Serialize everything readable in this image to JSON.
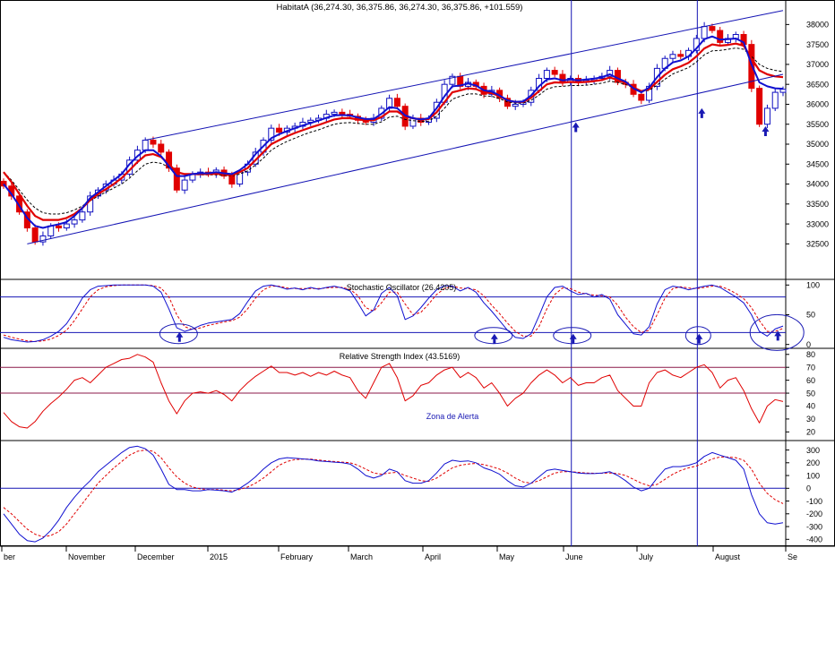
{
  "chart_data": {
    "type": "line",
    "title": "HabitatA (36,274.30, 36,375.86, 36,274.30, 36,375.86, +101.559)",
    "x_labels": [
      "ber",
      "November",
      "December",
      "2015",
      "February",
      "March",
      "April",
      "May",
      "June",
      "July",
      "August",
      "Se"
    ],
    "colors": {
      "up_candle": "#1010c0",
      "down_candle": "#e00000",
      "ma_fast": "#1010d0",
      "ma_mid": "#e00000",
      "ma_slow": "#000000",
      "channel": "#1414b4",
      "signal": "#e00000",
      "annotation": "#1a1ab4"
    },
    "price": {
      "y_ticks": [
        32500,
        33000,
        33500,
        34000,
        34500,
        35000,
        35500,
        36000,
        36500,
        37000,
        37500,
        38000
      ],
      "y_tick_labels": [
        "32500",
        "33000",
        "33500",
        "34000",
        "34500",
        "35000",
        "35500",
        "36000",
        "36500",
        "37000",
        "37500",
        "38000"
      ],
      "ylim": [
        31700,
        38300
      ],
      "close": [
        33950,
        33700,
        33300,
        32900,
        32550,
        32700,
        32950,
        32900,
        33000,
        33100,
        33300,
        33700,
        33850,
        34000,
        34100,
        34250,
        34600,
        34850,
        35100,
        35000,
        34800,
        34400,
        33850,
        34100,
        34250,
        34300,
        34250,
        34350,
        34200,
        34000,
        34300,
        34500,
        34800,
        35100,
        35400,
        35300,
        35400,
        35450,
        35550,
        35600,
        35650,
        35750,
        35800,
        35750,
        35700,
        35600,
        35550,
        35650,
        35900,
        36150,
        35950,
        35450,
        35650,
        35550,
        35650,
        36050,
        36500,
        36700,
        36450,
        36550,
        36450,
        36250,
        36350,
        36150,
        35950,
        36000,
        36050,
        36350,
        36650,
        36850,
        36750,
        36550,
        36650,
        36550,
        36600,
        36650,
        36700,
        36850,
        36550,
        36500,
        36250,
        36100,
        36450,
        36900,
        37150,
        37250,
        37200,
        37350,
        37650,
        37950,
        37850,
        37550,
        37650,
        37750,
        37500,
        36400,
        35500,
        35900,
        36300,
        36376
      ],
      "ma_fast": [
        34000,
        33750,
        33450,
        33150,
        32950,
        32900,
        32950,
        32990,
        33050,
        33200,
        33400,
        33650,
        33800,
        33950,
        34100,
        34250,
        34500,
        34700,
        34850,
        34850,
        34700,
        34450,
        34200,
        34200,
        34250,
        34270,
        34270,
        34300,
        34270,
        34250,
        34350,
        34500,
        34750,
        34950,
        35150,
        35250,
        35330,
        35400,
        35470,
        35530,
        35590,
        35660,
        35720,
        35730,
        35720,
        35670,
        35630,
        35630,
        35760,
        35930,
        35900,
        35720,
        35650,
        35620,
        35650,
        35900,
        36200,
        36450,
        36470,
        36520,
        36470,
        36350,
        36320,
        36220,
        36100,
        36060,
        36070,
        36220,
        36450,
        36620,
        36650,
        36600,
        36620,
        36600,
        36620,
        36640,
        36680,
        36750,
        36650,
        36570,
        36400,
        36300,
        36420,
        36680,
        36900,
        37050,
        37100,
        37200,
        37400,
        37630,
        37700,
        37620,
        37630,
        37650,
        37550,
        37000,
        36550,
        36450,
        36400,
        36390
      ],
      "ma_mid": [
        34300,
        34050,
        33750,
        33450,
        33200,
        33100,
        33100,
        33100,
        33150,
        33250,
        33400,
        33600,
        33750,
        33870,
        34000,
        34150,
        34350,
        34550,
        34720,
        34750,
        34680,
        34500,
        34300,
        34250,
        34250,
        34250,
        34250,
        34260,
        34250,
        34220,
        34300,
        34400,
        34600,
        34800,
        35000,
        35100,
        35200,
        35280,
        35350,
        35420,
        35480,
        35550,
        35620,
        35650,
        35650,
        35620,
        35600,
        35600,
        35680,
        35820,
        35820,
        35700,
        35650,
        35620,
        35630,
        35800,
        36050,
        36300,
        36350,
        36400,
        36380,
        36300,
        36280,
        36200,
        36100,
        36060,
        36060,
        36160,
        36330,
        36500,
        36550,
        36540,
        36560,
        36550,
        36560,
        36580,
        36610,
        36670,
        36610,
        36540,
        36420,
        36330,
        36380,
        36560,
        36740,
        36880,
        36950,
        37040,
        37200,
        37400,
        37500,
        37470,
        37490,
        37520,
        37470,
        37150,
        36850,
        36750,
        36700,
        36680
      ],
      "ma_slow": [
        34300,
        34100,
        33850,
        33600,
        33400,
        33280,
        33250,
        33250,
        33280,
        33350,
        33450,
        33580,
        33700,
        33800,
        33900,
        34000,
        34150,
        34330,
        34500,
        34550,
        34520,
        34420,
        34300,
        34250,
        34240,
        34230,
        34230,
        34230,
        34220,
        34200,
        34250,
        34330,
        34480,
        34650,
        34850,
        34970,
        35070,
        35150,
        35230,
        35300,
        35360,
        35430,
        35500,
        35530,
        35540,
        35520,
        35500,
        35500,
        35560,
        35680,
        35700,
        35620,
        35590,
        35570,
        35580,
        35700,
        35900,
        36130,
        36200,
        36260,
        36260,
        36210,
        36200,
        36140,
        36060,
        36030,
        36030,
        36100,
        36230,
        36380,
        36440,
        36450,
        36470,
        36470,
        36480,
        36500,
        36530,
        36580,
        36550,
        36500,
        36410,
        36330,
        36350,
        36480,
        36630,
        36760,
        36840,
        36920,
        37060,
        37240,
        37340,
        37350,
        37380,
        37410,
        37380,
        37200,
        37000,
        36900,
        36850,
        36820
      ],
      "channel_upper": [
        [
          35100,
          38400
        ],
        [
          35100,
          38400
        ]
      ],
      "channel_lines": [
        {
          "from": {
            "bar": 18,
            "value": 35100
          },
          "to": {
            "bar": 99,
            "value": 38350
          }
        },
        {
          "from": {
            "bar": 3,
            "value": 32500
          },
          "to": {
            "bar": 99,
            "value": 36750
          }
        }
      ],
      "signal_bars": [
        72,
        88
      ]
    },
    "stochastic": {
      "label": "Stochastic Oscillator (26.4205)",
      "y_ticks": [
        0,
        50,
        100
      ],
      "y_tick_labels": [
        "0",
        "50",
        "100"
      ],
      "levels": [
        20,
        80
      ],
      "ylim": [
        -5,
        108
      ],
      "k": [
        12,
        8,
        6,
        4,
        5,
        8,
        14,
        22,
        35,
        55,
        78,
        92,
        98,
        99,
        100,
        100,
        100,
        100,
        100,
        98,
        88,
        60,
        28,
        22,
        26,
        32,
        36,
        38,
        40,
        42,
        52,
        72,
        90,
        98,
        100,
        97,
        93,
        95,
        92,
        96,
        93,
        96,
        98,
        95,
        90,
        70,
        48,
        58,
        86,
        96,
        82,
        42,
        48,
        62,
        78,
        92,
        99,
        98,
        90,
        96,
        88,
        70,
        56,
        40,
        24,
        12,
        10,
        18,
        48,
        80,
        96,
        98,
        90,
        84,
        86,
        80,
        84,
        76,
        50,
        34,
        18,
        16,
        30,
        68,
        92,
        98,
        96,
        92,
        95,
        98,
        100,
        96,
        88,
        80,
        70,
        50,
        22,
        14,
        26,
        31
      ],
      "d": [
        16,
        12,
        9,
        6,
        5,
        6,
        9,
        15,
        24,
        40,
        60,
        80,
        92,
        97,
        99,
        100,
        100,
        100,
        100,
        99,
        95,
        80,
        50,
        30,
        25,
        28,
        32,
        35,
        38,
        40,
        46,
        60,
        78,
        92,
        98,
        98,
        95,
        94,
        94,
        94,
        94,
        95,
        96,
        96,
        93,
        82,
        62,
        56,
        70,
        88,
        88,
        68,
        50,
        54,
        68,
        84,
        94,
        98,
        95,
        94,
        92,
        82,
        66,
        52,
        36,
        22,
        14,
        14,
        30,
        60,
        84,
        95,
        94,
        88,
        85,
        83,
        82,
        80,
        66,
        46,
        30,
        20,
        24,
        50,
        78,
        94,
        97,
        95,
        94,
        96,
        98,
        98,
        93,
        86,
        77,
        62,
        40,
        22,
        22,
        27
      ]
    },
    "rsi": {
      "label": "Relative Strength Index (43.5169)",
      "y_ticks": [
        20,
        30,
        40,
        50,
        60,
        70,
        80
      ],
      "y_tick_labels": [
        "20",
        "30",
        "40",
        "50",
        "60",
        "70",
        "80"
      ],
      "levels": [
        50,
        70
      ],
      "ylim": [
        14,
        84
      ],
      "annotation": "Zona de Alerta",
      "values": [
        35,
        28,
        24,
        23,
        28,
        36,
        42,
        47,
        53,
        60,
        62,
        58,
        64,
        70,
        73,
        76,
        77,
        80,
        78,
        74,
        58,
        44,
        34,
        44,
        50,
        51,
        50,
        52,
        49,
        44,
        52,
        58,
        63,
        67,
        71,
        66,
        66,
        64,
        66,
        63,
        66,
        64,
        67,
        64,
        62,
        52,
        46,
        58,
        70,
        73,
        62,
        44,
        48,
        56,
        58,
        64,
        68,
        70,
        62,
        66,
        62,
        54,
        58,
        50,
        40,
        46,
        50,
        58,
        64,
        68,
        64,
        58,
        62,
        56,
        58,
        58,
        62,
        64,
        52,
        46,
        40,
        40,
        58,
        66,
        68,
        64,
        62,
        66,
        70,
        72,
        66,
        54,
        60,
        62,
        52,
        38,
        27,
        40,
        45,
        43.5
      ]
    },
    "macd": {
      "y_ticks": [
        -400,
        -300,
        -200,
        -100,
        0,
        100,
        200,
        300
      ],
      "y_tick_labels": [
        "-400",
        "-300",
        "-200",
        "-100",
        "0",
        "100",
        "200",
        "300"
      ],
      "levels": [
        0
      ],
      "ylim": [
        -440,
        360
      ],
      "line": [
        -200,
        -280,
        -360,
        -410,
        -420,
        -390,
        -330,
        -250,
        -150,
        -70,
        0,
        60,
        130,
        180,
        230,
        280,
        320,
        330,
        310,
        260,
        150,
        30,
        -10,
        -10,
        -20,
        -20,
        -10,
        -15,
        -20,
        -30,
        0,
        40,
        90,
        150,
        200,
        230,
        240,
        235,
        230,
        225,
        215,
        210,
        205,
        200,
        190,
        150,
        100,
        80,
        100,
        150,
        130,
        60,
        40,
        40,
        60,
        120,
        190,
        220,
        210,
        215,
        200,
        160,
        140,
        110,
        60,
        20,
        10,
        40,
        90,
        140,
        150,
        140,
        130,
        120,
        115,
        115,
        120,
        130,
        100,
        60,
        10,
        -20,
        0,
        80,
        150,
        170,
        170,
        180,
        200,
        250,
        280,
        260,
        240,
        220,
        150,
        -50,
        -200,
        -270,
        -280,
        -270
      ],
      "signal": [
        -150,
        -200,
        -260,
        -320,
        -360,
        -380,
        -370,
        -340,
        -280,
        -200,
        -120,
        -40,
        40,
        100,
        160,
        210,
        260,
        290,
        300,
        290,
        240,
        160,
        90,
        40,
        10,
        -5,
        -10,
        -10,
        -15,
        -20,
        -10,
        10,
        40,
        80,
        130,
        180,
        210,
        225,
        228,
        228,
        222,
        215,
        210,
        205,
        200,
        180,
        150,
        120,
        110,
        120,
        125,
        100,
        80,
        60,
        55,
        80,
        120,
        160,
        180,
        190,
        195,
        185,
        170,
        150,
        120,
        80,
        50,
        40,
        60,
        90,
        120,
        130,
        130,
        125,
        120,
        118,
        118,
        120,
        115,
        100,
        70,
        40,
        20,
        30,
        70,
        110,
        140,
        160,
        175,
        200,
        230,
        245,
        245,
        240,
        220,
        150,
        40,
        -40,
        -90,
        -120
      ]
    }
  }
}
